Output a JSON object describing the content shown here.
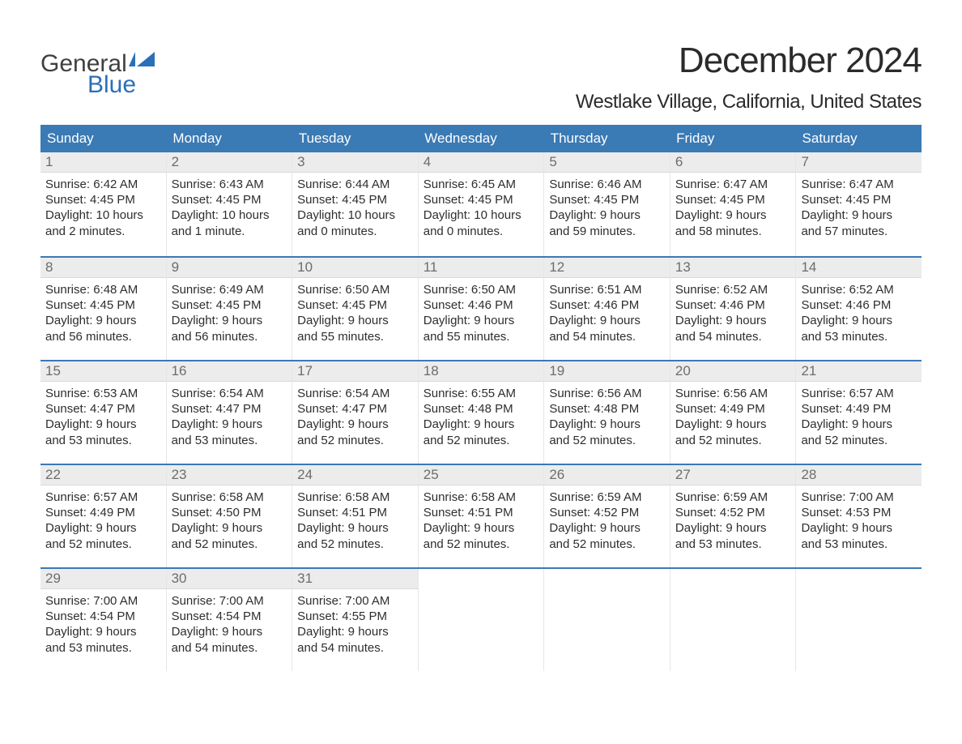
{
  "logo": {
    "top": "General",
    "bottom": "Blue",
    "flag_color": "#2a70b8",
    "top_color": "#404040",
    "bottom_color": "#2a70b8"
  },
  "title": "December 2024",
  "location": "Westlake Village, California, United States",
  "colors": {
    "header_bg": "#3a7ab5",
    "header_text": "#ffffff",
    "daynum_bg": "#ececec",
    "daynum_text": "#6d6d6d",
    "row_border": "#3a7ab5",
    "body_text": "#2e2e2e"
  },
  "weekdays": [
    "Sunday",
    "Monday",
    "Tuesday",
    "Wednesday",
    "Thursday",
    "Friday",
    "Saturday"
  ],
  "weeks": [
    [
      {
        "n": "1",
        "sr": "Sunrise: 6:42 AM",
        "ss": "Sunset: 4:45 PM",
        "d1": "Daylight: 10 hours",
        "d2": "and 2 minutes."
      },
      {
        "n": "2",
        "sr": "Sunrise: 6:43 AM",
        "ss": "Sunset: 4:45 PM",
        "d1": "Daylight: 10 hours",
        "d2": "and 1 minute."
      },
      {
        "n": "3",
        "sr": "Sunrise: 6:44 AM",
        "ss": "Sunset: 4:45 PM",
        "d1": "Daylight: 10 hours",
        "d2": "and 0 minutes."
      },
      {
        "n": "4",
        "sr": "Sunrise: 6:45 AM",
        "ss": "Sunset: 4:45 PM",
        "d1": "Daylight: 10 hours",
        "d2": "and 0 minutes."
      },
      {
        "n": "5",
        "sr": "Sunrise: 6:46 AM",
        "ss": "Sunset: 4:45 PM",
        "d1": "Daylight: 9 hours",
        "d2": "and 59 minutes."
      },
      {
        "n": "6",
        "sr": "Sunrise: 6:47 AM",
        "ss": "Sunset: 4:45 PM",
        "d1": "Daylight: 9 hours",
        "d2": "and 58 minutes."
      },
      {
        "n": "7",
        "sr": "Sunrise: 6:47 AM",
        "ss": "Sunset: 4:45 PM",
        "d1": "Daylight: 9 hours",
        "d2": "and 57 minutes."
      }
    ],
    [
      {
        "n": "8",
        "sr": "Sunrise: 6:48 AM",
        "ss": "Sunset: 4:45 PM",
        "d1": "Daylight: 9 hours",
        "d2": "and 56 minutes."
      },
      {
        "n": "9",
        "sr": "Sunrise: 6:49 AM",
        "ss": "Sunset: 4:45 PM",
        "d1": "Daylight: 9 hours",
        "d2": "and 56 minutes."
      },
      {
        "n": "10",
        "sr": "Sunrise: 6:50 AM",
        "ss": "Sunset: 4:45 PM",
        "d1": "Daylight: 9 hours",
        "d2": "and 55 minutes."
      },
      {
        "n": "11",
        "sr": "Sunrise: 6:50 AM",
        "ss": "Sunset: 4:46 PM",
        "d1": "Daylight: 9 hours",
        "d2": "and 55 minutes."
      },
      {
        "n": "12",
        "sr": "Sunrise: 6:51 AM",
        "ss": "Sunset: 4:46 PM",
        "d1": "Daylight: 9 hours",
        "d2": "and 54 minutes."
      },
      {
        "n": "13",
        "sr": "Sunrise: 6:52 AM",
        "ss": "Sunset: 4:46 PM",
        "d1": "Daylight: 9 hours",
        "d2": "and 54 minutes."
      },
      {
        "n": "14",
        "sr": "Sunrise: 6:52 AM",
        "ss": "Sunset: 4:46 PM",
        "d1": "Daylight: 9 hours",
        "d2": "and 53 minutes."
      }
    ],
    [
      {
        "n": "15",
        "sr": "Sunrise: 6:53 AM",
        "ss": "Sunset: 4:47 PM",
        "d1": "Daylight: 9 hours",
        "d2": "and 53 minutes."
      },
      {
        "n": "16",
        "sr": "Sunrise: 6:54 AM",
        "ss": "Sunset: 4:47 PM",
        "d1": "Daylight: 9 hours",
        "d2": "and 53 minutes."
      },
      {
        "n": "17",
        "sr": "Sunrise: 6:54 AM",
        "ss": "Sunset: 4:47 PM",
        "d1": "Daylight: 9 hours",
        "d2": "and 52 minutes."
      },
      {
        "n": "18",
        "sr": "Sunrise: 6:55 AM",
        "ss": "Sunset: 4:48 PM",
        "d1": "Daylight: 9 hours",
        "d2": "and 52 minutes."
      },
      {
        "n": "19",
        "sr": "Sunrise: 6:56 AM",
        "ss": "Sunset: 4:48 PM",
        "d1": "Daylight: 9 hours",
        "d2": "and 52 minutes."
      },
      {
        "n": "20",
        "sr": "Sunrise: 6:56 AM",
        "ss": "Sunset: 4:49 PM",
        "d1": "Daylight: 9 hours",
        "d2": "and 52 minutes."
      },
      {
        "n": "21",
        "sr": "Sunrise: 6:57 AM",
        "ss": "Sunset: 4:49 PM",
        "d1": "Daylight: 9 hours",
        "d2": "and 52 minutes."
      }
    ],
    [
      {
        "n": "22",
        "sr": "Sunrise: 6:57 AM",
        "ss": "Sunset: 4:49 PM",
        "d1": "Daylight: 9 hours",
        "d2": "and 52 minutes."
      },
      {
        "n": "23",
        "sr": "Sunrise: 6:58 AM",
        "ss": "Sunset: 4:50 PM",
        "d1": "Daylight: 9 hours",
        "d2": "and 52 minutes."
      },
      {
        "n": "24",
        "sr": "Sunrise: 6:58 AM",
        "ss": "Sunset: 4:51 PM",
        "d1": "Daylight: 9 hours",
        "d2": "and 52 minutes."
      },
      {
        "n": "25",
        "sr": "Sunrise: 6:58 AM",
        "ss": "Sunset: 4:51 PM",
        "d1": "Daylight: 9 hours",
        "d2": "and 52 minutes."
      },
      {
        "n": "26",
        "sr": "Sunrise: 6:59 AM",
        "ss": "Sunset: 4:52 PM",
        "d1": "Daylight: 9 hours",
        "d2": "and 52 minutes."
      },
      {
        "n": "27",
        "sr": "Sunrise: 6:59 AM",
        "ss": "Sunset: 4:52 PM",
        "d1": "Daylight: 9 hours",
        "d2": "and 53 minutes."
      },
      {
        "n": "28",
        "sr": "Sunrise: 7:00 AM",
        "ss": "Sunset: 4:53 PM",
        "d1": "Daylight: 9 hours",
        "d2": "and 53 minutes."
      }
    ],
    [
      {
        "n": "29",
        "sr": "Sunrise: 7:00 AM",
        "ss": "Sunset: 4:54 PM",
        "d1": "Daylight: 9 hours",
        "d2": "and 53 minutes."
      },
      {
        "n": "30",
        "sr": "Sunrise: 7:00 AM",
        "ss": "Sunset: 4:54 PM",
        "d1": "Daylight: 9 hours",
        "d2": "and 54 minutes."
      },
      {
        "n": "31",
        "sr": "Sunrise: 7:00 AM",
        "ss": "Sunset: 4:55 PM",
        "d1": "Daylight: 9 hours",
        "d2": "and 54 minutes."
      },
      {
        "empty": true
      },
      {
        "empty": true
      },
      {
        "empty": true
      },
      {
        "empty": true
      }
    ]
  ]
}
